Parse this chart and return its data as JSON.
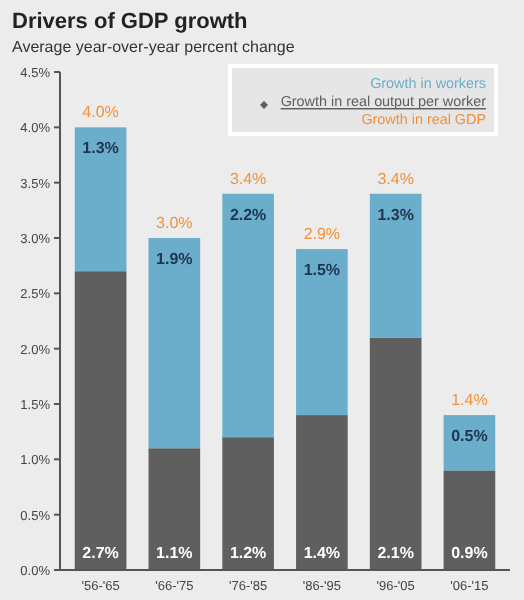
{
  "chart_data": {
    "type": "bar",
    "title": "Drivers of GDP growth",
    "subtitle": "Average year-over-year percent change",
    "categories": [
      "'56-'65",
      "'66-'75",
      "'76-'85",
      "'86-'95",
      "'96-'05",
      "'06-'15"
    ],
    "stacked": true,
    "series": [
      {
        "name": "Growth in real output per worker",
        "color": "#5f5f5f",
        "values": [
          2.7,
          1.1,
          1.2,
          1.4,
          2.1,
          0.9
        ],
        "value_labels": [
          "2.7%",
          "1.1%",
          "1.2%",
          "1.4%",
          "2.1%",
          "0.9%"
        ]
      },
      {
        "name": "Growth in workers",
        "color": "#6aaecb",
        "values": [
          1.3,
          1.9,
          2.2,
          1.5,
          1.3,
          0.5
        ],
        "value_labels": [
          "1.3%",
          "1.9%",
          "2.2%",
          "1.5%",
          "1.3%",
          "0.5%"
        ]
      }
    ],
    "totals": [
      "4.0%",
      "3.0%",
      "3.4%",
      "2.9%",
      "3.4%",
      "1.4%"
    ],
    "annotations": [
      "Growth in real GDP"
    ],
    "ylim": [
      0,
      4.5
    ],
    "yticks": [
      {
        "value": 0,
        "label": "0.0%"
      },
      {
        "value": 0.5,
        "label": "0.5%"
      },
      {
        "value": 1,
        "label": "1.0%"
      },
      {
        "value": 1.5,
        "label": "1.5%"
      },
      {
        "value": 2,
        "label": "2.0%"
      },
      {
        "value": 2.5,
        "label": "2.5%"
      },
      {
        "value": 3,
        "label": "3.0%"
      },
      {
        "value": 3.5,
        "label": "3.5%"
      },
      {
        "value": 4,
        "label": "4.0%"
      },
      {
        "value": 4.5,
        "label": "4.5%"
      }
    ],
    "grid": false,
    "legend": "top right"
  }
}
